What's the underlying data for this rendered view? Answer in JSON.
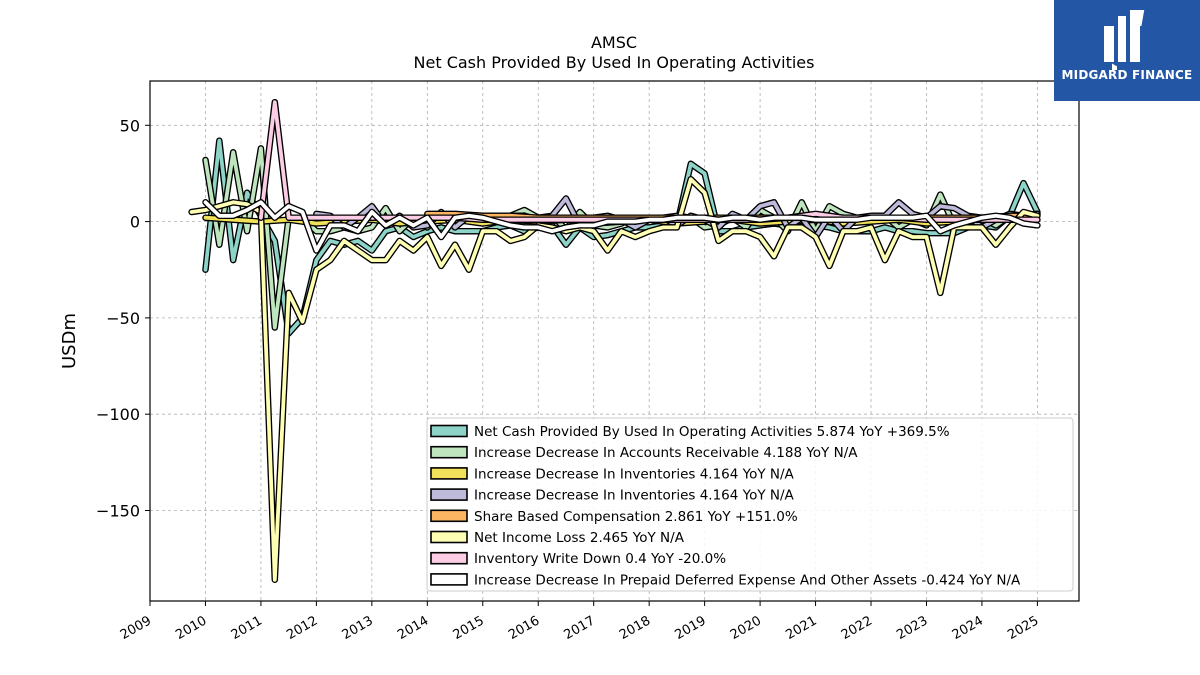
{
  "chart_data": {
    "type": "line",
    "title": "AMSC",
    "subtitle": "Net Cash Provided By Used In Operating Activities",
    "ylabel": "USDm",
    "xlabel": "",
    "x_ticks": [
      "2009",
      "2010",
      "2011",
      "2012",
      "2013",
      "2014",
      "2015",
      "2016",
      "2017",
      "2018",
      "2019",
      "2020",
      "2021",
      "2022",
      "2023",
      "2024",
      "2025"
    ],
    "y_ticks": [
      "50",
      "0",
      "−50",
      "−100",
      "−150"
    ],
    "y_tick_values": [
      50,
      0,
      -50,
      -100,
      -150
    ],
    "xlim": [
      2009.0,
      2025.75
    ],
    "ylim": [
      -197,
      73
    ],
    "grid": true,
    "legend_position": "lower-right",
    "series": [
      {
        "name": "Net Cash Provided By Used In Operating Activities  5.874 YoY +369.5%",
        "color": "#8dd3c7",
        "x": [
          2010.0,
          2010.25,
          2010.5,
          2010.75,
          2011.0,
          2011.25,
          2011.5,
          2011.75,
          2012.0,
          2012.25,
          2012.5,
          2012.75,
          2013.0,
          2013.25,
          2013.5,
          2013.75,
          2014.0,
          2014.25,
          2014.5,
          2014.75,
          2015.0,
          2015.25,
          2015.5,
          2015.75,
          2016.0,
          2016.25,
          2016.5,
          2016.75,
          2017.0,
          2017.25,
          2017.5,
          2017.75,
          2018.0,
          2018.25,
          2018.5,
          2018.75,
          2019.0,
          2019.25,
          2019.5,
          2019.75,
          2020.0,
          2020.25,
          2020.5,
          2020.75,
          2021.0,
          2021.25,
          2021.5,
          2021.75,
          2022.0,
          2022.25,
          2022.5,
          2022.75,
          2023.0,
          2023.25,
          2023.5,
          2023.75,
          2024.0,
          2024.25,
          2024.5,
          2024.75,
          2025.0
        ],
        "values": [
          -25,
          42,
          -20,
          15,
          3,
          -10,
          -58,
          -50,
          -20,
          -10,
          -12,
          -10,
          -15,
          -5,
          -3,
          -8,
          -5,
          -3,
          -5,
          -5,
          -5,
          -3,
          -2,
          -5,
          -3,
          -2,
          -12,
          -3,
          -8,
          -7,
          -5,
          -3,
          -3,
          -2,
          -2,
          30,
          25,
          -5,
          -5,
          -3,
          -2,
          -1,
          -2,
          -3,
          -2,
          -3,
          -5,
          -5,
          -5,
          -3,
          -5,
          -5,
          -6,
          -6,
          -6,
          -3,
          -2,
          -3,
          3,
          20,
          5
        ]
      },
      {
        "name": "Increase Decrease In Accounts Receivable  4.188 YoY N/A",
        "color": "#bfe5bf",
        "x": [
          2010.0,
          2010.25,
          2010.5,
          2010.75,
          2011.0,
          2011.25,
          2011.5,
          2011.75,
          2012.0,
          2012.25,
          2012.5,
          2012.75,
          2013.0,
          2013.25,
          2013.5,
          2013.75,
          2014.0,
          2014.25,
          2014.5,
          2014.75,
          2015.0,
          2015.25,
          2015.5,
          2015.75,
          2016.0,
          2016.25,
          2016.5,
          2016.75,
          2017.0,
          2017.25,
          2017.5,
          2017.75,
          2018.0,
          2018.25,
          2018.5,
          2018.75,
          2019.0,
          2019.25,
          2019.5,
          2019.75,
          2020.0,
          2020.25,
          2020.5,
          2020.75,
          2021.0,
          2021.25,
          2021.5,
          2021.75,
          2022.0,
          2022.25,
          2022.5,
          2022.75,
          2023.0,
          2023.25,
          2023.5,
          2023.75,
          2024.0,
          2024.25,
          2024.5,
          2024.75,
          2025.0
        ],
        "values": [
          32,
          -12,
          36,
          -5,
          38,
          -55,
          2,
          2,
          -5,
          -5,
          -3,
          -5,
          -3,
          7,
          -5,
          2,
          -3,
          3,
          -2,
          2,
          3,
          2,
          3,
          6,
          2,
          3,
          -4,
          5,
          -2,
          -3,
          -1,
          2,
          1,
          2,
          3,
          2,
          -3,
          -2,
          2,
          -3,
          6,
          2,
          -5,
          10,
          -5,
          8,
          4,
          2,
          2,
          3,
          -3,
          1,
          -2,
          14,
          -2,
          3,
          2,
          -2,
          3,
          3,
          4
        ]
      },
      {
        "name": "Increase Decrease In Inventories  4.164 YoY N/A",
        "color": "#f0e05a",
        "x": [
          2010.0,
          2010.5,
          2011.0,
          2011.5,
          2012.0,
          2012.5,
          2013.0,
          2013.5,
          2014.0,
          2014.5,
          2015.0,
          2015.5,
          2016.0,
          2016.5,
          2017.0,
          2017.5,
          2018.0,
          2018.5,
          2019.0,
          2019.5,
          2020.0,
          2020.5,
          2021.0,
          2021.5,
          2022.0,
          2022.5,
          2023.0,
          2023.5,
          2024.0,
          2024.5,
          2025.0
        ],
        "values": [
          2,
          1,
          0,
          1,
          -1,
          0,
          1,
          -1,
          0,
          1,
          -1,
          1,
          0,
          1,
          -1,
          0,
          1,
          -1,
          0,
          1,
          -1,
          0,
          1,
          -1,
          0,
          1,
          -1,
          0,
          2,
          1,
          4
        ]
      },
      {
        "name": "Increase Decrease In Inventories  4.164 YoY N/A",
        "color": "#bebada",
        "x": [
          2012.0,
          2012.25,
          2012.5,
          2012.75,
          2013.0,
          2013.25,
          2013.5,
          2013.75,
          2014.0,
          2014.25,
          2014.5,
          2014.75,
          2015.0,
          2015.25,
          2015.5,
          2015.75,
          2016.0,
          2016.25,
          2016.5,
          2016.75,
          2017.0,
          2017.25,
          2017.5,
          2017.75,
          2018.0,
          2018.25,
          2018.5,
          2018.75,
          2019.0,
          2019.25,
          2019.5,
          2019.75,
          2020.0,
          2020.25,
          2020.5,
          2020.75,
          2021.0,
          2021.25,
          2021.5,
          2021.75,
          2022.0,
          2022.25,
          2022.5,
          2022.75,
          2023.0,
          2023.25,
          2023.5,
          2023.75,
          2024.0,
          2024.25,
          2024.5,
          2024.75,
          2025.0
        ],
        "values": [
          4,
          3,
          -3,
          2,
          8,
          -2,
          3,
          -3,
          -2,
          5,
          -3,
          3,
          2,
          1,
          3,
          3,
          1,
          3,
          12,
          -2,
          2,
          3,
          1,
          -3,
          1,
          2,
          -2,
          3,
          1,
          -3,
          4,
          1,
          8,
          10,
          -3,
          2,
          -8,
          3,
          -5,
          2,
          3,
          3,
          10,
          4,
          2,
          8,
          7,
          3,
          -3,
          1,
          4,
          3,
          4
        ]
      },
      {
        "name": "Share Based Compensation  2.861 YoY +151.0%",
        "color": "#fdb462",
        "x": [
          2014.0,
          2014.5,
          2015.0,
          2015.5,
          2016.0,
          2016.5,
          2017.0,
          2017.5,
          2018.0,
          2018.5,
          2019.0,
          2019.5,
          2020.0,
          2020.5,
          2021.0,
          2021.5,
          2022.0,
          2022.5,
          2023.0,
          2023.5,
          2024.0,
          2024.5,
          2025.0
        ],
        "values": [
          4,
          4,
          3,
          3,
          2,
          2,
          2,
          2,
          2,
          2,
          2,
          2,
          2,
          2,
          3,
          2,
          2,
          2,
          2,
          2,
          2,
          3,
          3
        ]
      },
      {
        "name": "Net Income Loss  2.465 YoY N/A",
        "color": "#ffffb3",
        "x": [
          2009.75,
          2010.0,
          2010.25,
          2010.5,
          2010.75,
          2011.0,
          2011.25,
          2011.5,
          2011.75,
          2012.0,
          2012.25,
          2012.5,
          2012.75,
          2013.0,
          2013.25,
          2013.5,
          2013.75,
          2014.0,
          2014.25,
          2014.5,
          2014.75,
          2015.0,
          2015.25,
          2015.5,
          2015.75,
          2016.0,
          2016.25,
          2016.5,
          2016.75,
          2017.0,
          2017.25,
          2017.5,
          2017.75,
          2018.0,
          2018.25,
          2018.5,
          2018.75,
          2019.0,
          2019.25,
          2019.5,
          2019.75,
          2020.0,
          2020.25,
          2020.5,
          2020.75,
          2021.0,
          2021.25,
          2021.5,
          2021.75,
          2022.0,
          2022.25,
          2022.5,
          2022.75,
          2023.0,
          2023.25,
          2023.5,
          2023.75,
          2024.0,
          2024.25,
          2024.5,
          2024.75,
          2025.0
        ],
        "values": [
          5,
          6,
          8,
          10,
          9,
          5,
          -186,
          -37,
          -52,
          -25,
          -20,
          -10,
          -15,
          -20,
          -20,
          -10,
          -15,
          -8,
          -23,
          -12,
          -25,
          -5,
          -5,
          -10,
          -8,
          -2,
          -3,
          -5,
          -3,
          -5,
          -15,
          -5,
          -8,
          -5,
          -3,
          -3,
          22,
          15,
          -10,
          -5,
          -5,
          -8,
          -18,
          -3,
          -3,
          -8,
          -23,
          -5,
          -5,
          -3,
          -20,
          -5,
          -8,
          -8,
          -37,
          -3,
          -3,
          -3,
          -12,
          -3,
          5,
          3
        ]
      },
      {
        "name": "Inventory Write Down  0.4 YoY -20.0%",
        "color": "#fccde5",
        "x": [
          2011.0,
          2011.25,
          2011.5,
          2011.75,
          2012.0,
          2012.5,
          2013.0,
          2013.5,
          2014.0,
          2014.5,
          2015.0,
          2015.5,
          2016.0,
          2016.5,
          2017.0,
          2017.5,
          2018.0,
          2018.5,
          2019.0,
          2019.5,
          2020.0,
          2020.5,
          2021.0,
          2021.5,
          2022.0,
          2022.5,
          2023.0,
          2023.5,
          2024.0,
          2024.5,
          2025.0
        ],
        "values": [
          2,
          62,
          2,
          2,
          2,
          2,
          2,
          2,
          2,
          2,
          1,
          1,
          1,
          1,
          1,
          1,
          1,
          1,
          1,
          1,
          1,
          2,
          4,
          2,
          2,
          2,
          1,
          1,
          1,
          1,
          1
        ]
      },
      {
        "name": "Increase Decrease In Prepaid Deferred Expense And Other Assets  -0.424 YoY N/A",
        "color": "#ffffff",
        "x": [
          2010.0,
          2010.25,
          2010.5,
          2010.75,
          2011.0,
          2011.25,
          2011.5,
          2011.75,
          2012.0,
          2012.25,
          2012.5,
          2012.75,
          2013.0,
          2013.25,
          2013.5,
          2013.75,
          2014.0,
          2014.25,
          2014.5,
          2014.75,
          2015.0,
          2015.25,
          2015.5,
          2015.75,
          2016.0,
          2016.25,
          2016.5,
          2016.75,
          2017.0,
          2017.25,
          2017.5,
          2017.75,
          2018.0,
          2018.25,
          2018.5,
          2018.75,
          2019.0,
          2019.25,
          2019.5,
          2019.75,
          2020.0,
          2020.25,
          2020.5,
          2020.75,
          2021.0,
          2021.25,
          2021.5,
          2021.75,
          2022.0,
          2022.25,
          2022.5,
          2022.75,
          2023.0,
          2023.25,
          2023.5,
          2023.75,
          2024.0,
          2024.25,
          2024.5,
          2024.75,
          2025.0
        ],
        "values": [
          10,
          3,
          3,
          6,
          10,
          2,
          8,
          5,
          -15,
          -2,
          -2,
          -5,
          5,
          -2,
          2,
          -2,
          2,
          -8,
          2,
          3,
          2,
          0,
          -2,
          -3,
          -3,
          -5,
          -3,
          -2,
          -2,
          0,
          0,
          0,
          1,
          1,
          2,
          2,
          2,
          1,
          2,
          2,
          1,
          2,
          2,
          2,
          1,
          1,
          1,
          1,
          2,
          2,
          2,
          2,
          3,
          -5,
          -2,
          0,
          2,
          3,
          2,
          -1,
          -2
        ]
      }
    ]
  },
  "logo": {
    "text": "MIDGARD FINANCE"
  }
}
